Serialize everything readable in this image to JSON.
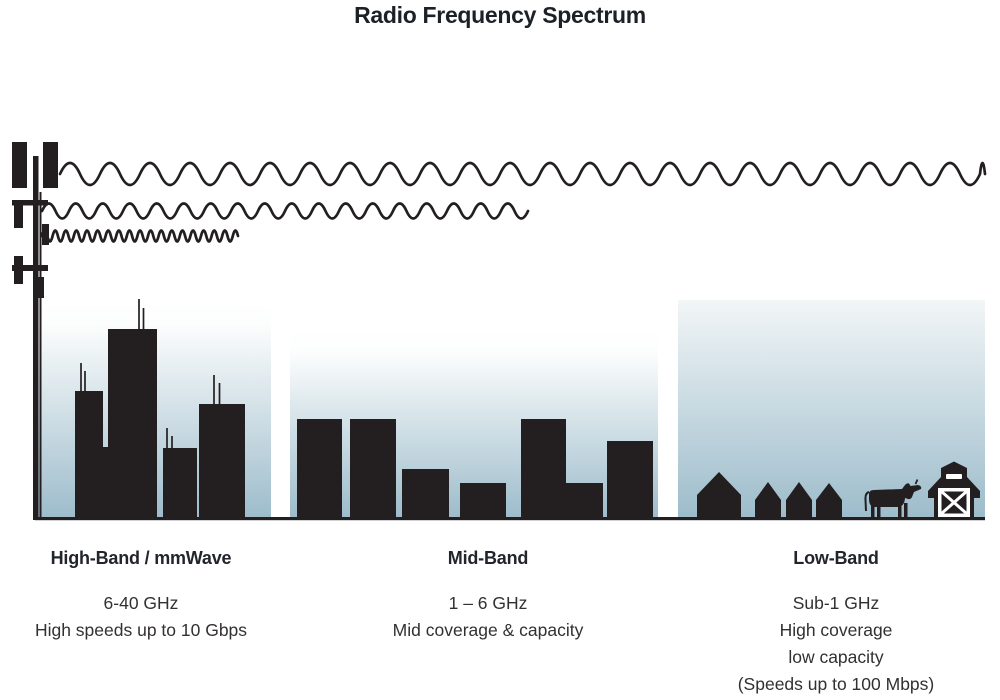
{
  "title": "Radio Frequency Spectrum",
  "bands": [
    {
      "name": "high-band",
      "heading": "High-Band / mmWave",
      "lines": [
        "6-40 GHz",
        "High speeds up to 10 Gbps"
      ],
      "scene": "city-skyline",
      "wave": "high-frequency-short-range"
    },
    {
      "name": "mid-band",
      "heading": "Mid-Band",
      "lines": [
        "1 – 6 GHz",
        "Mid coverage & capacity"
      ],
      "scene": "town-buildings",
      "wave": "mid-frequency-mid-range"
    },
    {
      "name": "low-band",
      "heading": "Low-Band",
      "lines": [
        "Sub-1 GHz",
        "High coverage",
        "low capacity",
        "(Speeds up to 100 Mbps)"
      ],
      "scene": "rural-houses-cow-barn",
      "wave": "low-frequency-long-range"
    }
  ],
  "colors": {
    "ink": "#231f20",
    "sky_bottom": "#9dbccb",
    "title_text": "#1c2128",
    "body_text": "#333031"
  },
  "icons": [
    "cell-tower-icon",
    "sine-wave-icon",
    "city-buildings-icon",
    "town-buildings-icon",
    "house-icon",
    "cow-icon",
    "barn-icon"
  ]
}
